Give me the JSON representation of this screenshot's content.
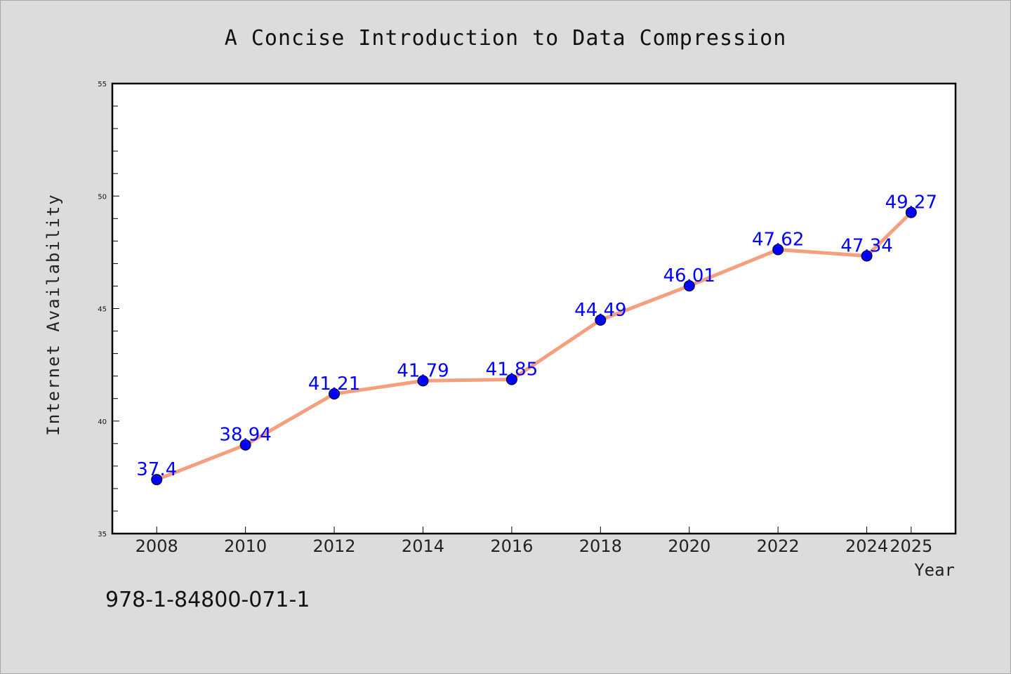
{
  "chart_data": {
    "type": "line",
    "title": "A Concise Introduction to Data Compression",
    "xlabel": "Year",
    "ylabel": "Internet Availability",
    "x": [
      2008,
      2010,
      2012,
      2014,
      2016,
      2018,
      2020,
      2022,
      2024,
      2025
    ],
    "series": [
      {
        "values": [
          37.4,
          38.94,
          41.21,
          41.79,
          41.85,
          44.49,
          46.01,
          47.62,
          47.34,
          49.27
        ],
        "labels": [
          "37.4",
          "38.94",
          "41.21",
          "41.79",
          "41.85",
          "44.49",
          "46.01",
          "47.62",
          "47.34",
          "49.27"
        ],
        "line_color": "#f4a07e",
        "marker_color": "#0000ff"
      }
    ],
    "yticks": [
      35,
      40,
      45,
      50,
      55
    ],
    "ytick_labels": [
      "35",
      "40",
      "45",
      "50",
      "55"
    ],
    "ylim": [
      35,
      55
    ],
    "xlim": [
      2007,
      2026
    ],
    "grid": false,
    "legend": "none",
    "label_color": "#0000ff"
  },
  "footer": {
    "isbn": "978-1-84800-071-1"
  }
}
